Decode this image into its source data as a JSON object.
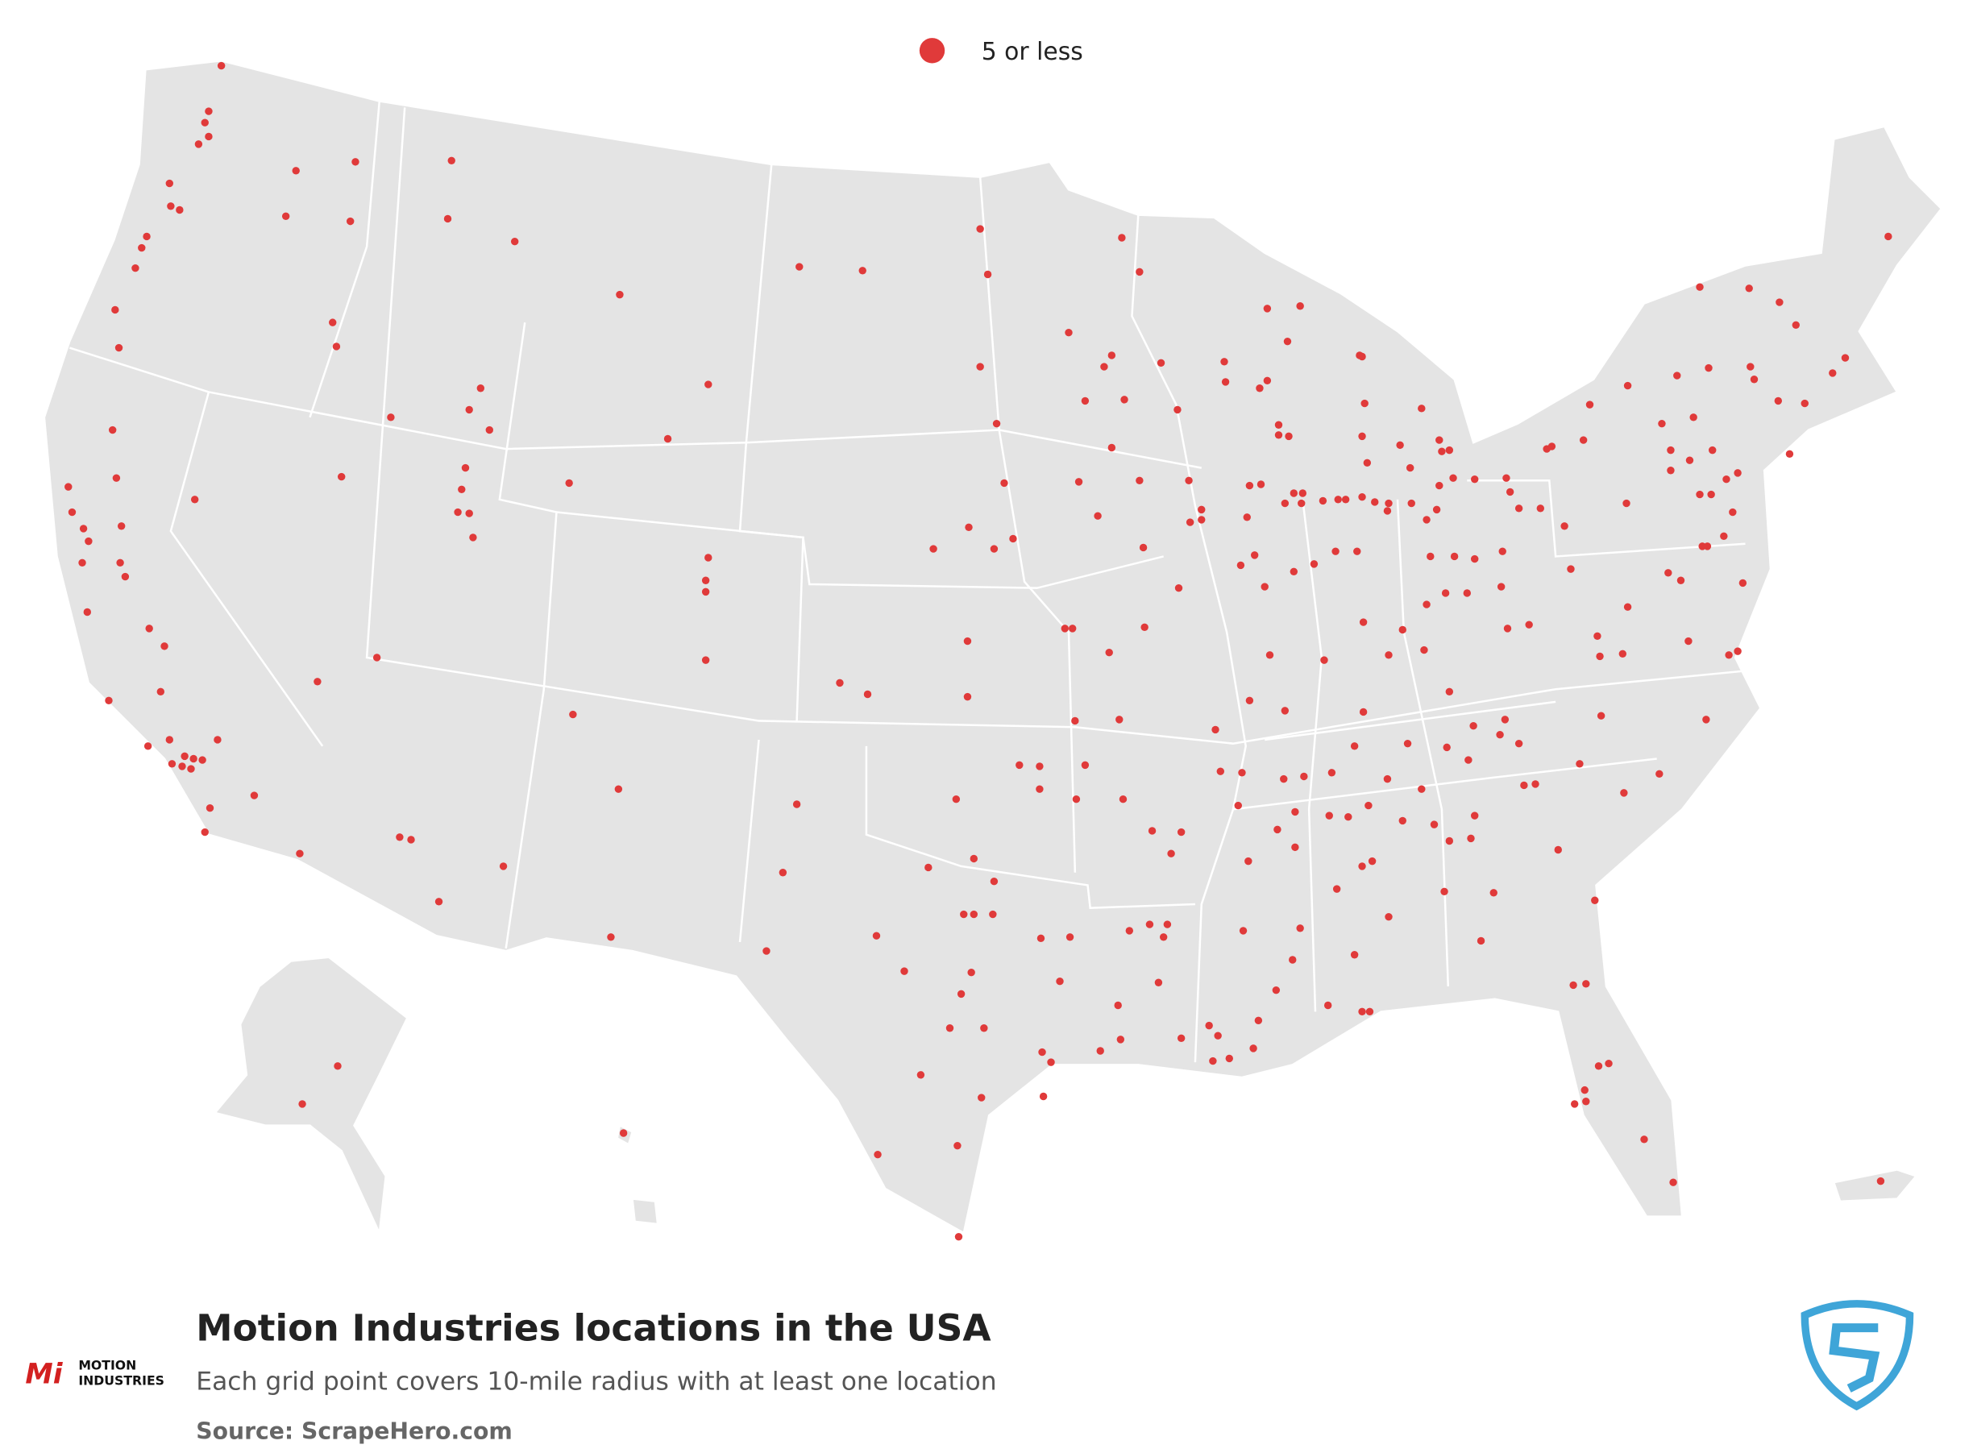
{
  "legend": {
    "label": "5 or less"
  },
  "footer": {
    "title": "Motion Industries locations in the USA",
    "subtitle": "Each grid point covers 10-mile radius with at least one location",
    "source": "Source: ScrapeHero.com"
  },
  "logo": {
    "line1": "MOTION",
    "line2": "INDUSTRIES",
    "mark": "Mi"
  }
}
